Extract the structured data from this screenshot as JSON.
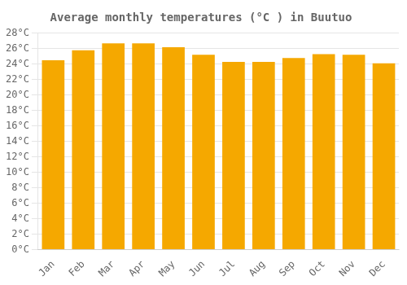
{
  "chart_data": {
    "type": "bar",
    "title": "Average monthly temperatures (°C ) in Buutuo",
    "categories": [
      "Jan",
      "Feb",
      "Mar",
      "Apr",
      "May",
      "Jun",
      "Jul",
      "Aug",
      "Sep",
      "Oct",
      "Nov",
      "Dec"
    ],
    "values": [
      24.5,
      25.8,
      26.7,
      26.7,
      26.2,
      25.2,
      24.3,
      24.3,
      24.8,
      25.3,
      25.2,
      24.1
    ],
    "color": "#F5A800",
    "ylim": [
      0,
      28
    ],
    "yticks": [
      {
        "value": 0,
        "label": "0°C"
      },
      {
        "value": 2,
        "label": "2°C"
      },
      {
        "value": 4,
        "label": "4°C"
      },
      {
        "value": 6,
        "label": "6°C"
      },
      {
        "value": 8,
        "label": "8°C"
      },
      {
        "value": 10,
        "label": "10°C"
      },
      {
        "value": 12,
        "label": "12°C"
      },
      {
        "value": 14,
        "label": "14°C"
      },
      {
        "value": 16,
        "label": "16°C"
      },
      {
        "value": 18,
        "label": "18°C"
      },
      {
        "value": 20,
        "label": "20°C"
      },
      {
        "value": 22,
        "label": "22°C"
      },
      {
        "value": 24,
        "label": "24°C"
      },
      {
        "value": 26,
        "label": "26°C"
      },
      {
        "value": 28,
        "label": "28°C"
      }
    ],
    "grid": true
  }
}
